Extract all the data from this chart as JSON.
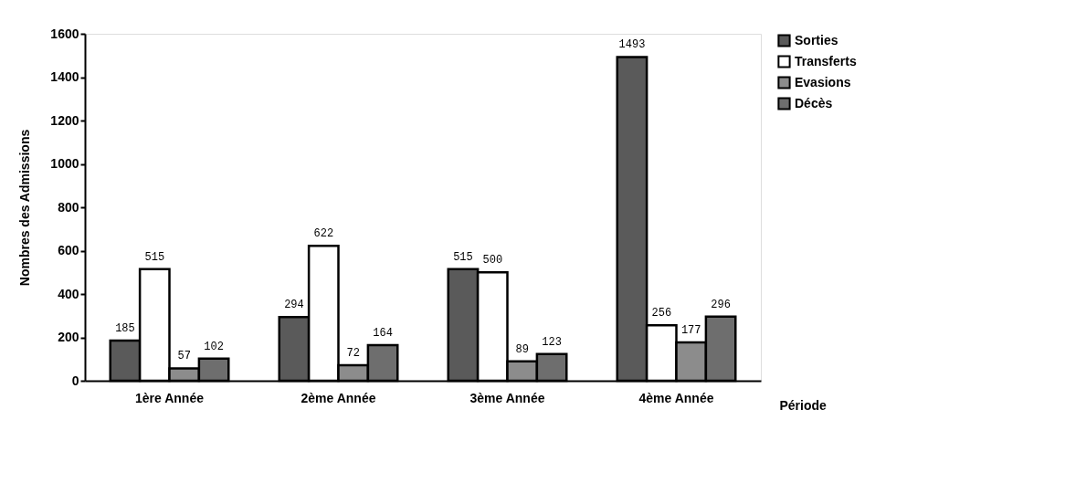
{
  "chart_data": {
    "type": "bar",
    "categories": [
      "1ère Année",
      "2ème Année",
      "3ème Année",
      "4ème Année"
    ],
    "xlabel": "Période",
    "ylabel": "Nombres des Admissions",
    "series": [
      {
        "name": "Sorties",
        "color": "#5a5a5a",
        "values": [
          185,
          294,
          515,
          1493
        ]
      },
      {
        "name": "Transferts",
        "color": "#ffffff",
        "values": [
          515,
          622,
          500,
          256
        ]
      },
      {
        "name": "Evasions",
        "color": "#8c8c8c",
        "values": [
          57,
          72,
          89,
          177
        ]
      },
      {
        "name": "Décès",
        "color": "#6e6e6e",
        "values": [
          102,
          164,
          123,
          296
        ]
      }
    ],
    "ylim": [
      0,
      1600
    ],
    "yticks": [
      0,
      200,
      400,
      600,
      800,
      1000,
      1200,
      1400,
      1600
    ],
    "data_labels": true,
    "grid": false,
    "legend": "right"
  }
}
